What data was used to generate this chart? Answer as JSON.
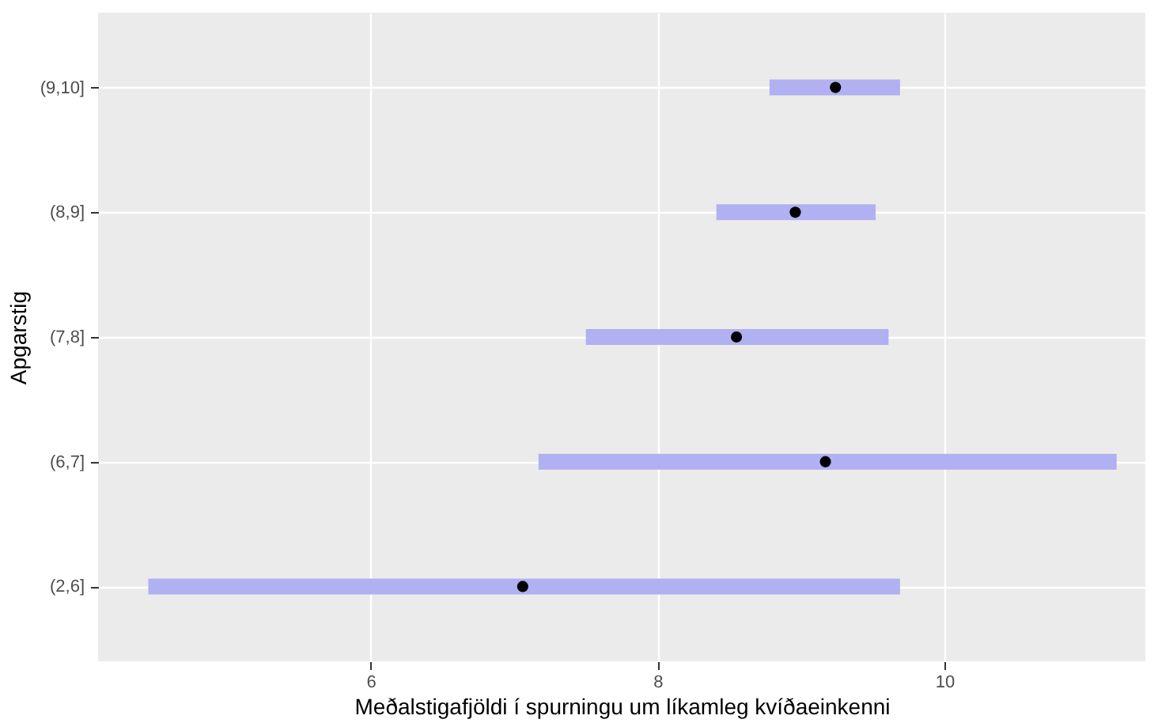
{
  "chart_data": {
    "type": "bar",
    "orientation": "horizontal",
    "xlabel": "Meðalstigafjöldi í spurningu um líkamleg kvíðaeinkenni",
    "ylabel": "Apgarstig",
    "categories": [
      "(9,10]",
      "(8,9]",
      "(7,8]",
      "(6,7]",
      "(2,6]"
    ],
    "series": [
      {
        "color": "#b0b0f2",
        "base": [
          8.78,
          8.41,
          7.5,
          7.17,
          4.45
        ],
        "values": [
          0.91,
          1.11,
          2.11,
          4.03,
          5.24
        ]
      },
      {
        "type": "scatter",
        "color": "#000000",
        "values": [
          9.24,
          8.96,
          8.55,
          9.17,
          7.06
        ]
      }
    ],
    "xlim": [
      4.1,
      11.4
    ],
    "xticks": [
      6,
      8,
      10
    ],
    "grid": true,
    "marker": "circle"
  }
}
